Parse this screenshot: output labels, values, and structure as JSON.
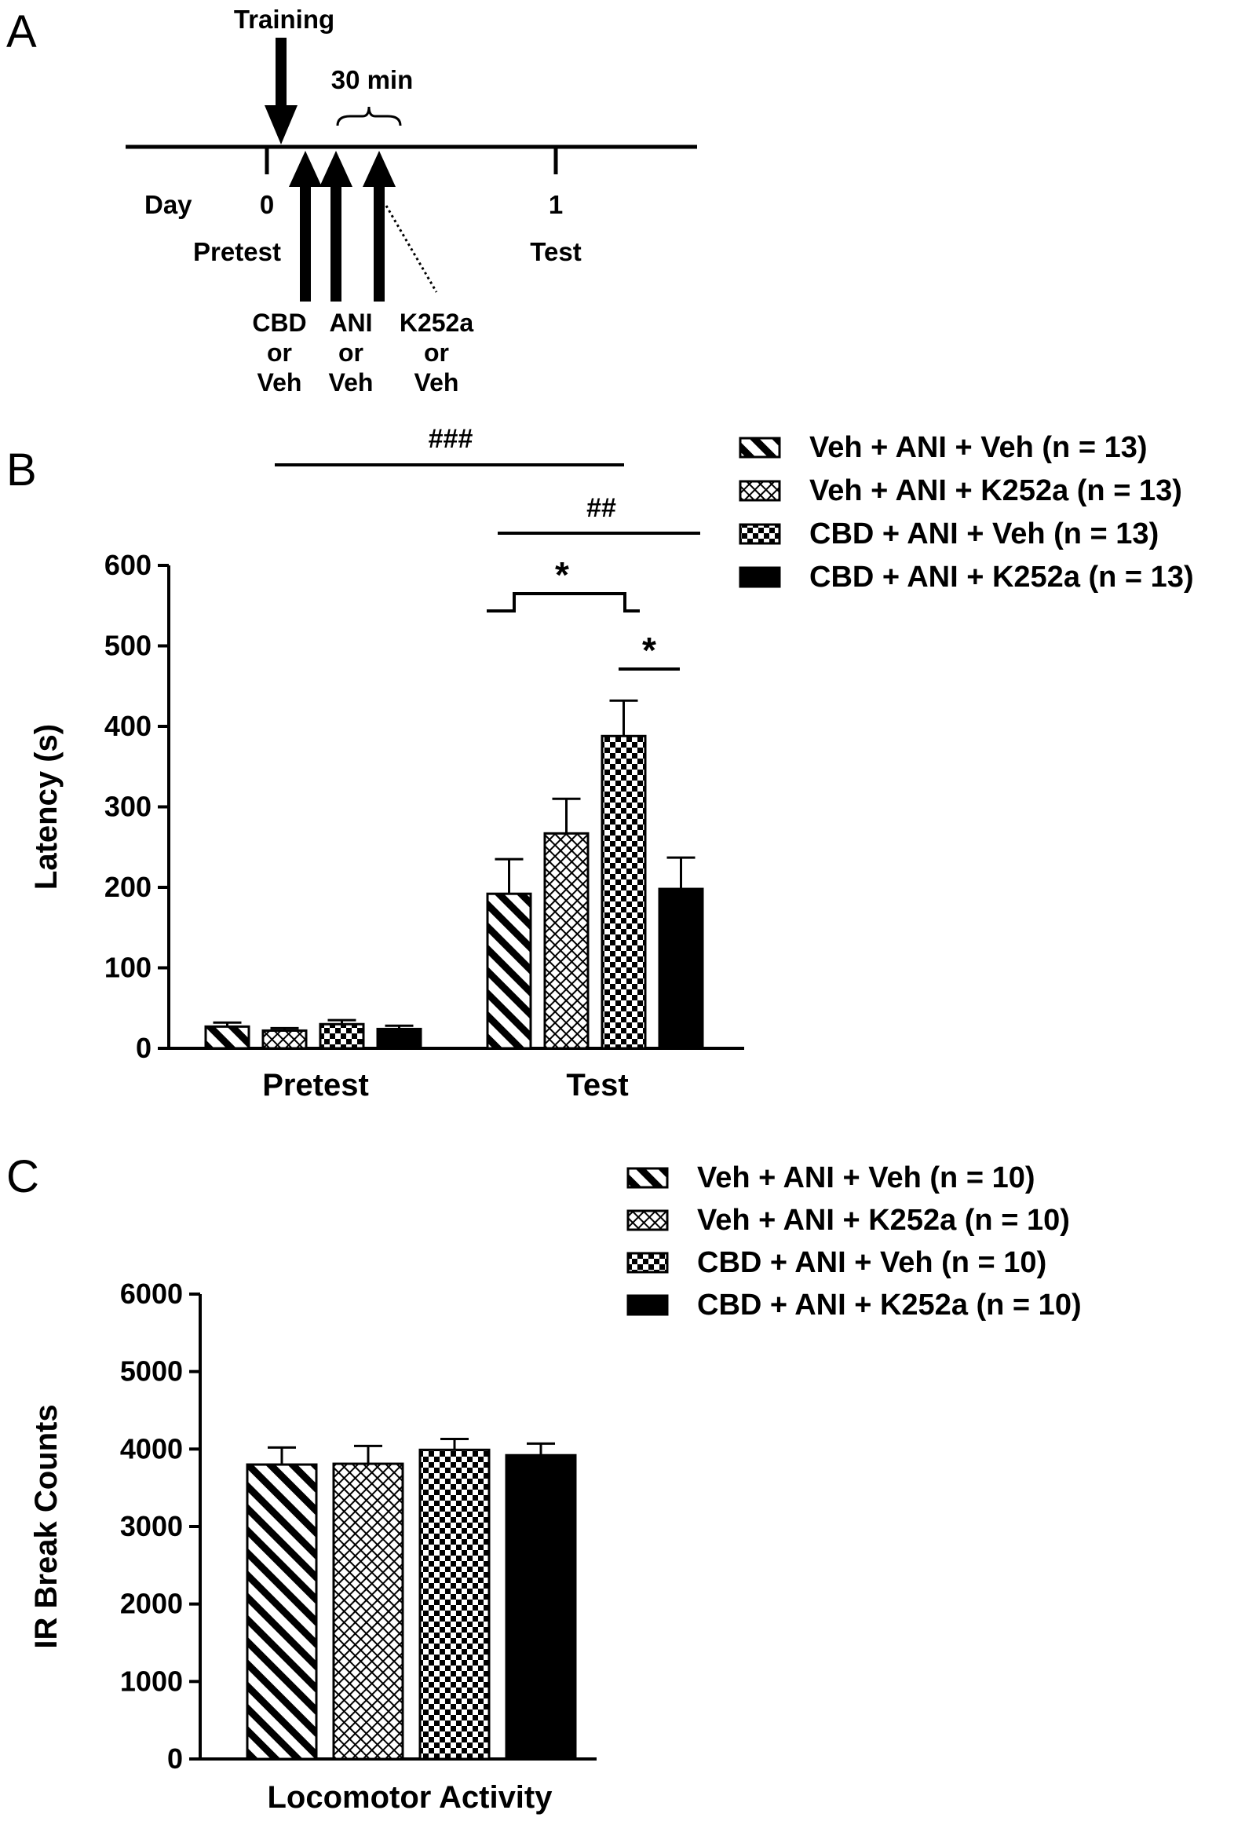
{
  "panels": {
    "a": "A",
    "b": "B",
    "c": "C"
  },
  "timeline": {
    "training": "Training",
    "interval": "30 min",
    "day_label": "Day",
    "day0": "0",
    "day1": "1",
    "pretest": "Pretest",
    "test": "Test",
    "injections": [
      {
        "lines": [
          "CBD",
          "or",
          "Veh"
        ]
      },
      {
        "lines": [
          "ANI",
          "or",
          "Veh"
        ]
      },
      {
        "lines": [
          "K252a",
          "or",
          "Veh"
        ]
      }
    ]
  },
  "colors": {
    "ink": "#000000",
    "paper": "#ffffff"
  },
  "chart_data": [
    {
      "panel": "B",
      "type": "bar",
      "ylabel": "Latency (s)",
      "xlabel": "",
      "ylim": [
        0,
        600
      ],
      "yticks": [
        0,
        100,
        200,
        300,
        400,
        500,
        600
      ],
      "categories": [
        "Pretest",
        "Test"
      ],
      "legend_position": "top-right",
      "series": [
        {
          "name": "Veh + ANI + Veh (n = 13)",
          "pattern": "diagonal-stripes",
          "values": [
            27,
            192
          ],
          "errors": [
            5,
            43
          ]
        },
        {
          "name": "Veh + ANI + K252a (n = 13)",
          "pattern": "crosshatch",
          "values": [
            22,
            267
          ],
          "errors": [
            3,
            43
          ]
        },
        {
          "name": "CBD + ANI + Veh (n = 13)",
          "pattern": "checkerboard",
          "values": [
            30,
            388
          ],
          "errors": [
            5,
            44
          ]
        },
        {
          "name": "CBD + ANI + K252a (n = 13)",
          "pattern": "solid",
          "values": [
            24,
            198
          ],
          "errors": [
            4,
            39
          ]
        }
      ],
      "annotations": [
        {
          "label": "###",
          "from": "Pretest",
          "to": "Test CBD + ANI + Veh"
        },
        {
          "label": "##",
          "from": "Test Veh + ANI + Veh",
          "to": "beyond Test"
        },
        {
          "label": "*",
          "from": "Test Veh + ANI + Veh",
          "to": "Test CBD + ANI + Veh"
        },
        {
          "label": "*",
          "from": "Test CBD + ANI + Veh",
          "to": "Test CBD + ANI + K252a"
        }
      ]
    },
    {
      "panel": "C",
      "type": "bar",
      "ylabel": "IR Break Counts",
      "xlabel": "Locomotor Activity",
      "ylim": [
        0,
        6000
      ],
      "yticks": [
        0,
        1000,
        2000,
        3000,
        4000,
        5000,
        6000
      ],
      "categories": [
        "Locomotor Activity"
      ],
      "legend_position": "top-right",
      "series": [
        {
          "name": "Veh + ANI + Veh (n = 10)",
          "pattern": "diagonal-stripes",
          "values": [
            3800
          ],
          "errors": [
            220
          ]
        },
        {
          "name": "Veh + ANI + K252a (n = 10)",
          "pattern": "crosshatch",
          "values": [
            3810
          ],
          "errors": [
            230
          ]
        },
        {
          "name": "CBD + ANI + Veh (n = 10)",
          "pattern": "checkerboard",
          "values": [
            3990
          ],
          "errors": [
            140
          ]
        },
        {
          "name": "CBD + ANI + K252a (n = 10)",
          "pattern": "solid",
          "values": [
            3920
          ],
          "errors": [
            150
          ]
        }
      ]
    }
  ]
}
